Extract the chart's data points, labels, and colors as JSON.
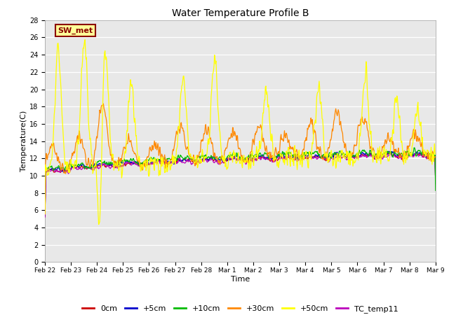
{
  "title": "Water Temperature Profile B",
  "xlabel": "Time",
  "ylabel": "Temperature(C)",
  "ylim": [
    0,
    28
  ],
  "yticks": [
    0,
    2,
    4,
    6,
    8,
    10,
    12,
    14,
    16,
    18,
    20,
    22,
    24,
    26,
    28
  ],
  "bg_color": "#e8e8e8",
  "legend_labels": [
    "0cm",
    "+5cm",
    "+10cm",
    "+30cm",
    "+50cm",
    "TC_temp11"
  ],
  "legend_colors": [
    "#cc0000",
    "#0000cc",
    "#00bb00",
    "#ff8800",
    "#ffff00",
    "#bb00bb"
  ],
  "annotation_text": "SW_met",
  "annotation_color": "#8b0000",
  "annotation_bg": "#ffff99",
  "xtick_labels": [
    "Feb 22",
    "Feb 23",
    "Feb 24",
    "Feb 25",
    "Feb 26",
    "Feb 27",
    "Feb 28",
    "Mar 1",
    "Mar 2",
    "Mar 3",
    "Mar 4",
    "Mar 5",
    "Mar 6",
    "Mar 7",
    "Mar 8",
    "Mar 9"
  ],
  "n_points": 800
}
